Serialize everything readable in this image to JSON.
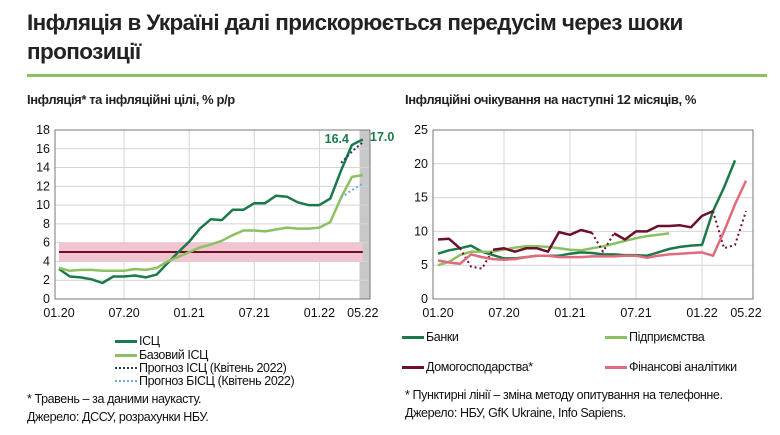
{
  "title": "Інфляція в Україні далі прискорюється передусім через шоки пропозиції",
  "colors": {
    "accent": "#8cc063",
    "cpi": "#1b7a4a",
    "core": "#8cc063",
    "forecast_cpi": "#1f3f6e",
    "forecast_core": "#6fa8dc",
    "target": "#6b0f2a",
    "target_band": "#f2c4cf",
    "households": "#6b0f2a",
    "analysts": "#e06b7d",
    "shade": "#c8c8c8"
  },
  "chart_data": [
    {
      "type": "line",
      "title": "Інфляція* та інфляційні цілі, % р/р",
      "x_tick_labels": [
        "01.20",
        "07.20",
        "01.21",
        "07.21",
        "01.22",
        "05.22"
      ],
      "x_tick_index": [
        0,
        6,
        12,
        18,
        24,
        28
      ],
      "ylim": [
        0,
        18
      ],
      "y_ticks": [
        0,
        2,
        4,
        6,
        8,
        10,
        12,
        14,
        16,
        18
      ],
      "grid": true,
      "series": [
        {
          "name": "ІСЦ",
          "style": "solid",
          "values": [
            3.2,
            2.4,
            2.3,
            2.1,
            1.7,
            2.4,
            2.4,
            2.5,
            2.3,
            2.6,
            3.8,
            5.0,
            6.1,
            7.5,
            8.5,
            8.4,
            9.5,
            9.5,
            10.2,
            10.2,
            11.0,
            10.9,
            10.3,
            10.0,
            10.0,
            10.7,
            13.7,
            16.4,
            17.0
          ]
        },
        {
          "name": "Базовий ІСЦ",
          "style": "solid",
          "values": [
            3.3,
            3.0,
            3.1,
            3.1,
            3.0,
            3.0,
            3.0,
            3.2,
            3.1,
            3.3,
            4.0,
            4.5,
            5.0,
            5.5,
            5.8,
            6.2,
            6.8,
            7.3,
            7.3,
            7.2,
            7.4,
            7.6,
            7.5,
            7.5,
            7.6,
            8.2,
            10.8,
            13.0,
            13.2
          ]
        },
        {
          "name": "Прогноз ІСЦ (Квітень 2022)",
          "style": "dotted",
          "start_index": 26,
          "values": [
            14.5,
            15.7,
            16.7
          ]
        },
        {
          "name": "Прогноз БІСЦ (Квітень 2022)",
          "style": "dotted",
          "start_index": 26,
          "values": [
            10.8,
            11.6,
            12.3
          ]
        }
      ],
      "target": {
        "value": 5,
        "band": [
          4,
          6
        ]
      },
      "shaded_period": "05.22",
      "annotations": [
        "16.4",
        "17.0"
      ],
      "note": "* Травень – за даними наукасту.",
      "source": "Джерело: ДССУ, розрахунки НБУ."
    },
    {
      "type": "line",
      "title": "Інфляційні очікування на наступні 12 місяців, %",
      "x_tick_labels": [
        "01.20",
        "07.20",
        "01.21",
        "07.21",
        "01.22",
        "05.22"
      ],
      "x_tick_index": [
        0,
        6,
        12,
        18,
        24,
        28
      ],
      "ylim": [
        0,
        25
      ],
      "y_ticks": [
        0,
        5,
        10,
        15,
        20,
        25
      ],
      "grid": true,
      "series": [
        {
          "name": "Банки",
          "values": [
            6.7,
            7.2,
            7.5,
            7.9,
            7.0,
            6.5,
            6.0,
            6.0,
            6.2,
            6.4,
            6.4,
            6.4,
            6.7,
            6.9,
            6.8,
            6.6,
            6.6,
            6.5,
            6.5,
            6.4,
            6.9,
            7.4,
            7.7,
            7.9,
            8.0,
            13.0,
            16.5,
            20.5
          ]
        },
        {
          "name": "Підприємства",
          "values": [
            5.0,
            5.5,
            6.5,
            7.0,
            7.0,
            7.0,
            7.3,
            7.6,
            7.8,
            7.8,
            7.7,
            7.5,
            7.3,
            7.2,
            7.5,
            7.8,
            8.2,
            8.6,
            9.0,
            9.3,
            9.5,
            9.7
          ]
        },
        {
          "name": "Домогосподарства*",
          "values": [
            8.8,
            8.9,
            7.5,
            4.8,
            4.5,
            7.3,
            7.5,
            7.0,
            7.5,
            7.5,
            7.0,
            9.9,
            9.5,
            10.2,
            9.8,
            7.0,
            9.7,
            8.8,
            10.0,
            10.0,
            10.8,
            10.8,
            10.9,
            10.6,
            12.3,
            13.0,
            7.5,
            8.0,
            13.0
          ],
          "dotted_ranges": [
            [
              2,
              5
            ],
            [
              14,
              16
            ],
            [
              25,
              28
            ]
          ]
        },
        {
          "name": "Фінансові аналітики",
          "values": [
            5.7,
            5.4,
            5.2,
            6.6,
            6.2,
            5.9,
            5.8,
            5.9,
            6.2,
            6.4,
            6.4,
            6.2,
            6.2,
            6.2,
            6.3,
            6.3,
            6.3,
            6.4,
            6.4,
            6.1,
            6.4,
            6.6,
            6.7,
            6.8,
            6.9,
            6.4,
            10.0,
            14.0,
            17.5
          ]
        }
      ],
      "note": "* Пунктирні лінії – зміна методу опитування на телефонне.",
      "source": "Джерело: НБУ, GfK Ukraine, Info Sapiens."
    }
  ]
}
